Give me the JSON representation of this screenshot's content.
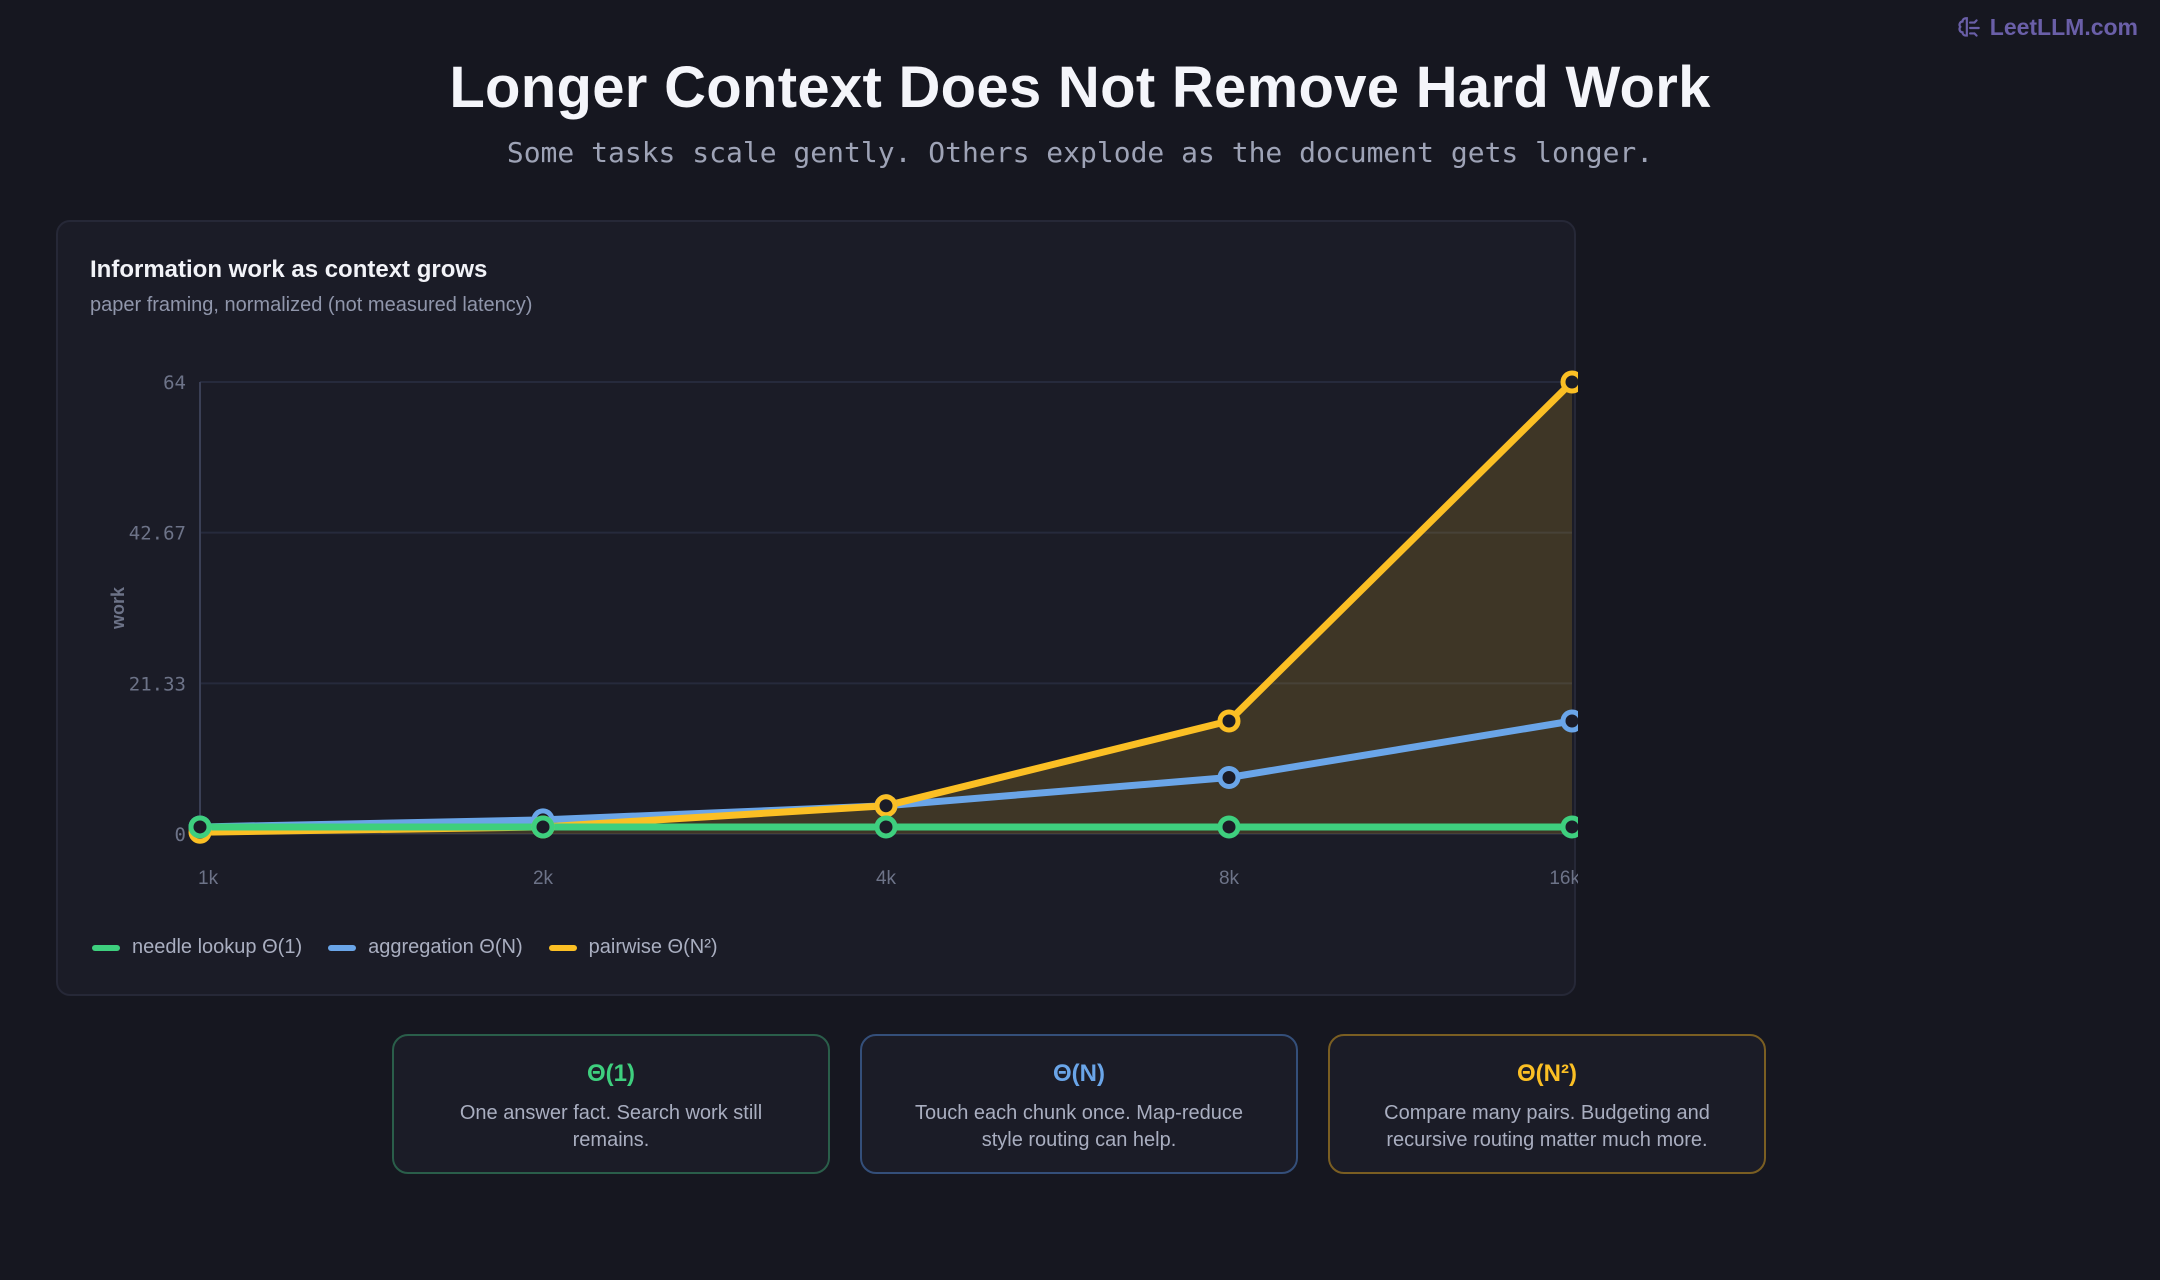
{
  "brand": {
    "name": "LeetLLM.com",
    "icon": "brain-icon"
  },
  "header": {
    "title": "Longer Context Does Not Remove Hard Work",
    "subtitle": "Some tasks scale gently. Others explode as the document gets longer."
  },
  "chart_data": {
    "type": "line",
    "title": "Information work as context grows",
    "subtitle": "paper framing, normalized (not measured latency)",
    "xlabel": "",
    "ylabel": "work",
    "categories": [
      "1k",
      "2k",
      "4k",
      "8k",
      "16k"
    ],
    "yticks": [
      "0",
      "21.33",
      "42.67",
      "64"
    ],
    "ylim": [
      0,
      64
    ],
    "grid": true,
    "legend": "bottom-left",
    "series": [
      {
        "name": "needle lookup Θ(1)",
        "values": [
          1,
          1,
          1,
          1,
          1
        ],
        "color": "#3ecf7e",
        "fill": false
      },
      {
        "name": "aggregation Θ(N)",
        "values": [
          1,
          2,
          4,
          8,
          16
        ],
        "color": "#6aa5e8",
        "fill": false
      },
      {
        "name": "pairwise Θ(N²)",
        "values": [
          0.25,
          1,
          4,
          16,
          64
        ],
        "color": "#fbbf24",
        "fill": true
      }
    ]
  },
  "cards": [
    {
      "title": "Θ(1)",
      "desc": "One answer fact. Search work still remains.",
      "color": "#3ecf7e",
      "border": "#2a5e4a"
    },
    {
      "title": "Θ(N)",
      "desc": "Touch each chunk once. Map-reduce style routing can help.",
      "color": "#6aa5e8",
      "border": "#344f7a"
    },
    {
      "title": "Θ(N²)",
      "desc": "Compare many pairs. Budgeting and recursive routing matter much more.",
      "color": "#fbbf24",
      "border": "#7a5e22"
    }
  ]
}
